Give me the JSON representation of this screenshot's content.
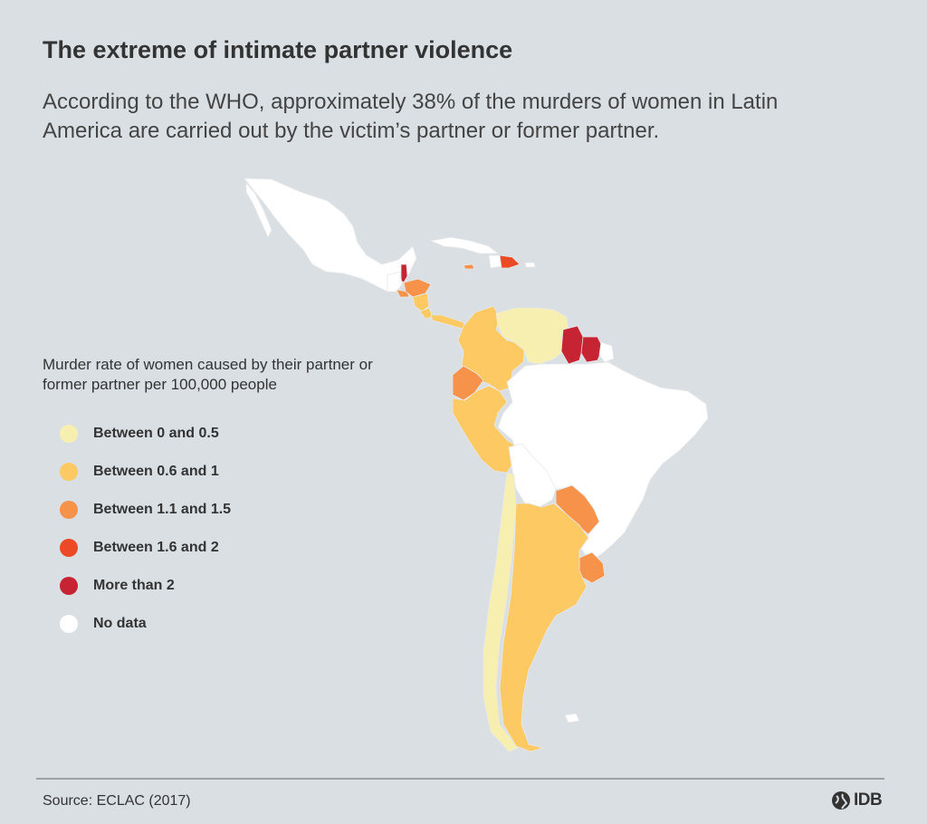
{
  "header": {
    "title": "The extreme of intimate partner violence",
    "subtitle": "According to the WHO, approximately 38% of the murders of women in Latin America are carried out by the victim’s partner or former partner."
  },
  "legend": {
    "title": "Murder rate of women caused by their partner or former partner per 100,000 people",
    "items": [
      {
        "label": "Between 0 and 0.5",
        "color": "#f7efb0"
      },
      {
        "label": "Between 0.6  and  1",
        "color": "#fcc963"
      },
      {
        "label": "Between 1.1 and 1.5",
        "color": "#f7924a"
      },
      {
        "label": "Between 1.6 and 2",
        "color": "#ec4a26"
      },
      {
        "label": "More than 2",
        "color": "#c62333"
      },
      {
        "label": "No data",
        "color": "#ffffff"
      }
    ]
  },
  "map_data": {
    "countries": [
      {
        "name": "Mexico",
        "class": "No data",
        "color": "#ffffff"
      },
      {
        "name": "Belize",
        "class": "More than 2",
        "color": "#c62333"
      },
      {
        "name": "Guatemala",
        "class": "No data",
        "color": "#ffffff"
      },
      {
        "name": "Honduras",
        "class": "Between 1.1 and 1.5",
        "color": "#f7924a"
      },
      {
        "name": "El Salvador",
        "class": "Between 1.1 and 1.5",
        "color": "#f7924a"
      },
      {
        "name": "Nicaragua",
        "class": "Between 0.6  and  1",
        "color": "#fcc963"
      },
      {
        "name": "Costa Rica",
        "class": "Between 0.6  and  1",
        "color": "#fcc963"
      },
      {
        "name": "Panama",
        "class": "Between 0.6  and  1",
        "color": "#fcc963"
      },
      {
        "name": "Cuba",
        "class": "No data",
        "color": "#ffffff"
      },
      {
        "name": "Jamaica",
        "class": "Between 1.1 and 1.5",
        "color": "#f7924a"
      },
      {
        "name": "Haiti",
        "class": "No data",
        "color": "#ffffff"
      },
      {
        "name": "Dominican Republic",
        "class": "Between 1.6 and 2",
        "color": "#ec4a26"
      },
      {
        "name": "Puerto Rico",
        "class": "No data",
        "color": "#ffffff"
      },
      {
        "name": "Colombia",
        "class": "Between 0.6  and  1",
        "color": "#fcc963"
      },
      {
        "name": "Venezuela",
        "class": "Between 0 and 0.5",
        "color": "#f7efb0"
      },
      {
        "name": "Guyana",
        "class": "More than 2",
        "color": "#c62333"
      },
      {
        "name": "Suriname",
        "class": "More than 2",
        "color": "#c62333"
      },
      {
        "name": "French Guiana",
        "class": "No data",
        "color": "#ffffff"
      },
      {
        "name": "Ecuador",
        "class": "Between 1.1 and 1.5",
        "color": "#f7924a"
      },
      {
        "name": "Peru",
        "class": "Between 0.6  and  1",
        "color": "#fcc963"
      },
      {
        "name": "Brazil",
        "class": "No data",
        "color": "#ffffff"
      },
      {
        "name": "Bolivia",
        "class": "No data",
        "color": "#ffffff"
      },
      {
        "name": "Paraguay",
        "class": "Between 1.1 and 1.5",
        "color": "#f7924a"
      },
      {
        "name": "Chile",
        "class": "Between 0 and 0.5",
        "color": "#f7efb0"
      },
      {
        "name": "Argentina",
        "class": "Between 0.6  and  1",
        "color": "#fcc963"
      },
      {
        "name": "Uruguay",
        "class": "Between 1.1 and 1.5",
        "color": "#f7924a"
      }
    ]
  },
  "footer": {
    "source": "Source: ECLAC (2017)",
    "logo_text": "IDB"
  }
}
